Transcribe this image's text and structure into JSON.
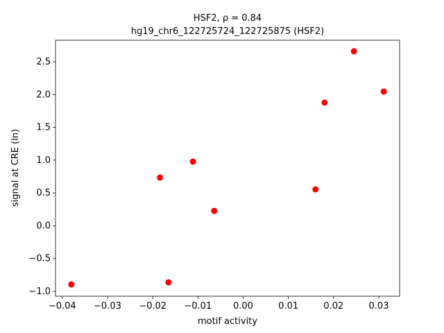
{
  "chart_data": {
    "type": "scatter",
    "title": "HSF2, ρ = 0.84",
    "subtitle": "hg19_chr6_122725724_122725875 (HSF2)",
    "xlabel": "motif activity",
    "ylabel": "signal at CRE (ln)",
    "color": "#ff0000",
    "x": [
      -0.038,
      -0.0165,
      -0.0184,
      -0.0111,
      -0.0064,
      0.016,
      0.018,
      0.0245,
      0.0311
    ],
    "y": [
      -0.894,
      -0.862,
      0.735,
      0.978,
      0.227,
      0.555,
      1.877,
      2.66,
      2.046
    ],
    "xlim": [
      -0.0415,
      0.0346
    ],
    "ylim": [
      -1.074,
      2.828
    ],
    "xticks": [
      {
        "value": -0.04,
        "label": "−0.04"
      },
      {
        "value": -0.03,
        "label": "−0.03"
      },
      {
        "value": -0.02,
        "label": "−0.02"
      },
      {
        "value": -0.01,
        "label": "−0.01"
      },
      {
        "value": 0,
        "label": "0.00"
      },
      0.01,
      0.02,
      0.03
    ],
    "yticks": [
      {
        "value": -1,
        "label": "−1.0"
      },
      {
        "value": -0.5,
        "label": "−0.5"
      },
      {
        "value": 0,
        "label": "0.0"
      },
      0.5,
      {
        "value": 1,
        "label": "1.0"
      },
      1.5,
      {
        "value": 2,
        "label": "2.0"
      },
      2.5
    ]
  }
}
